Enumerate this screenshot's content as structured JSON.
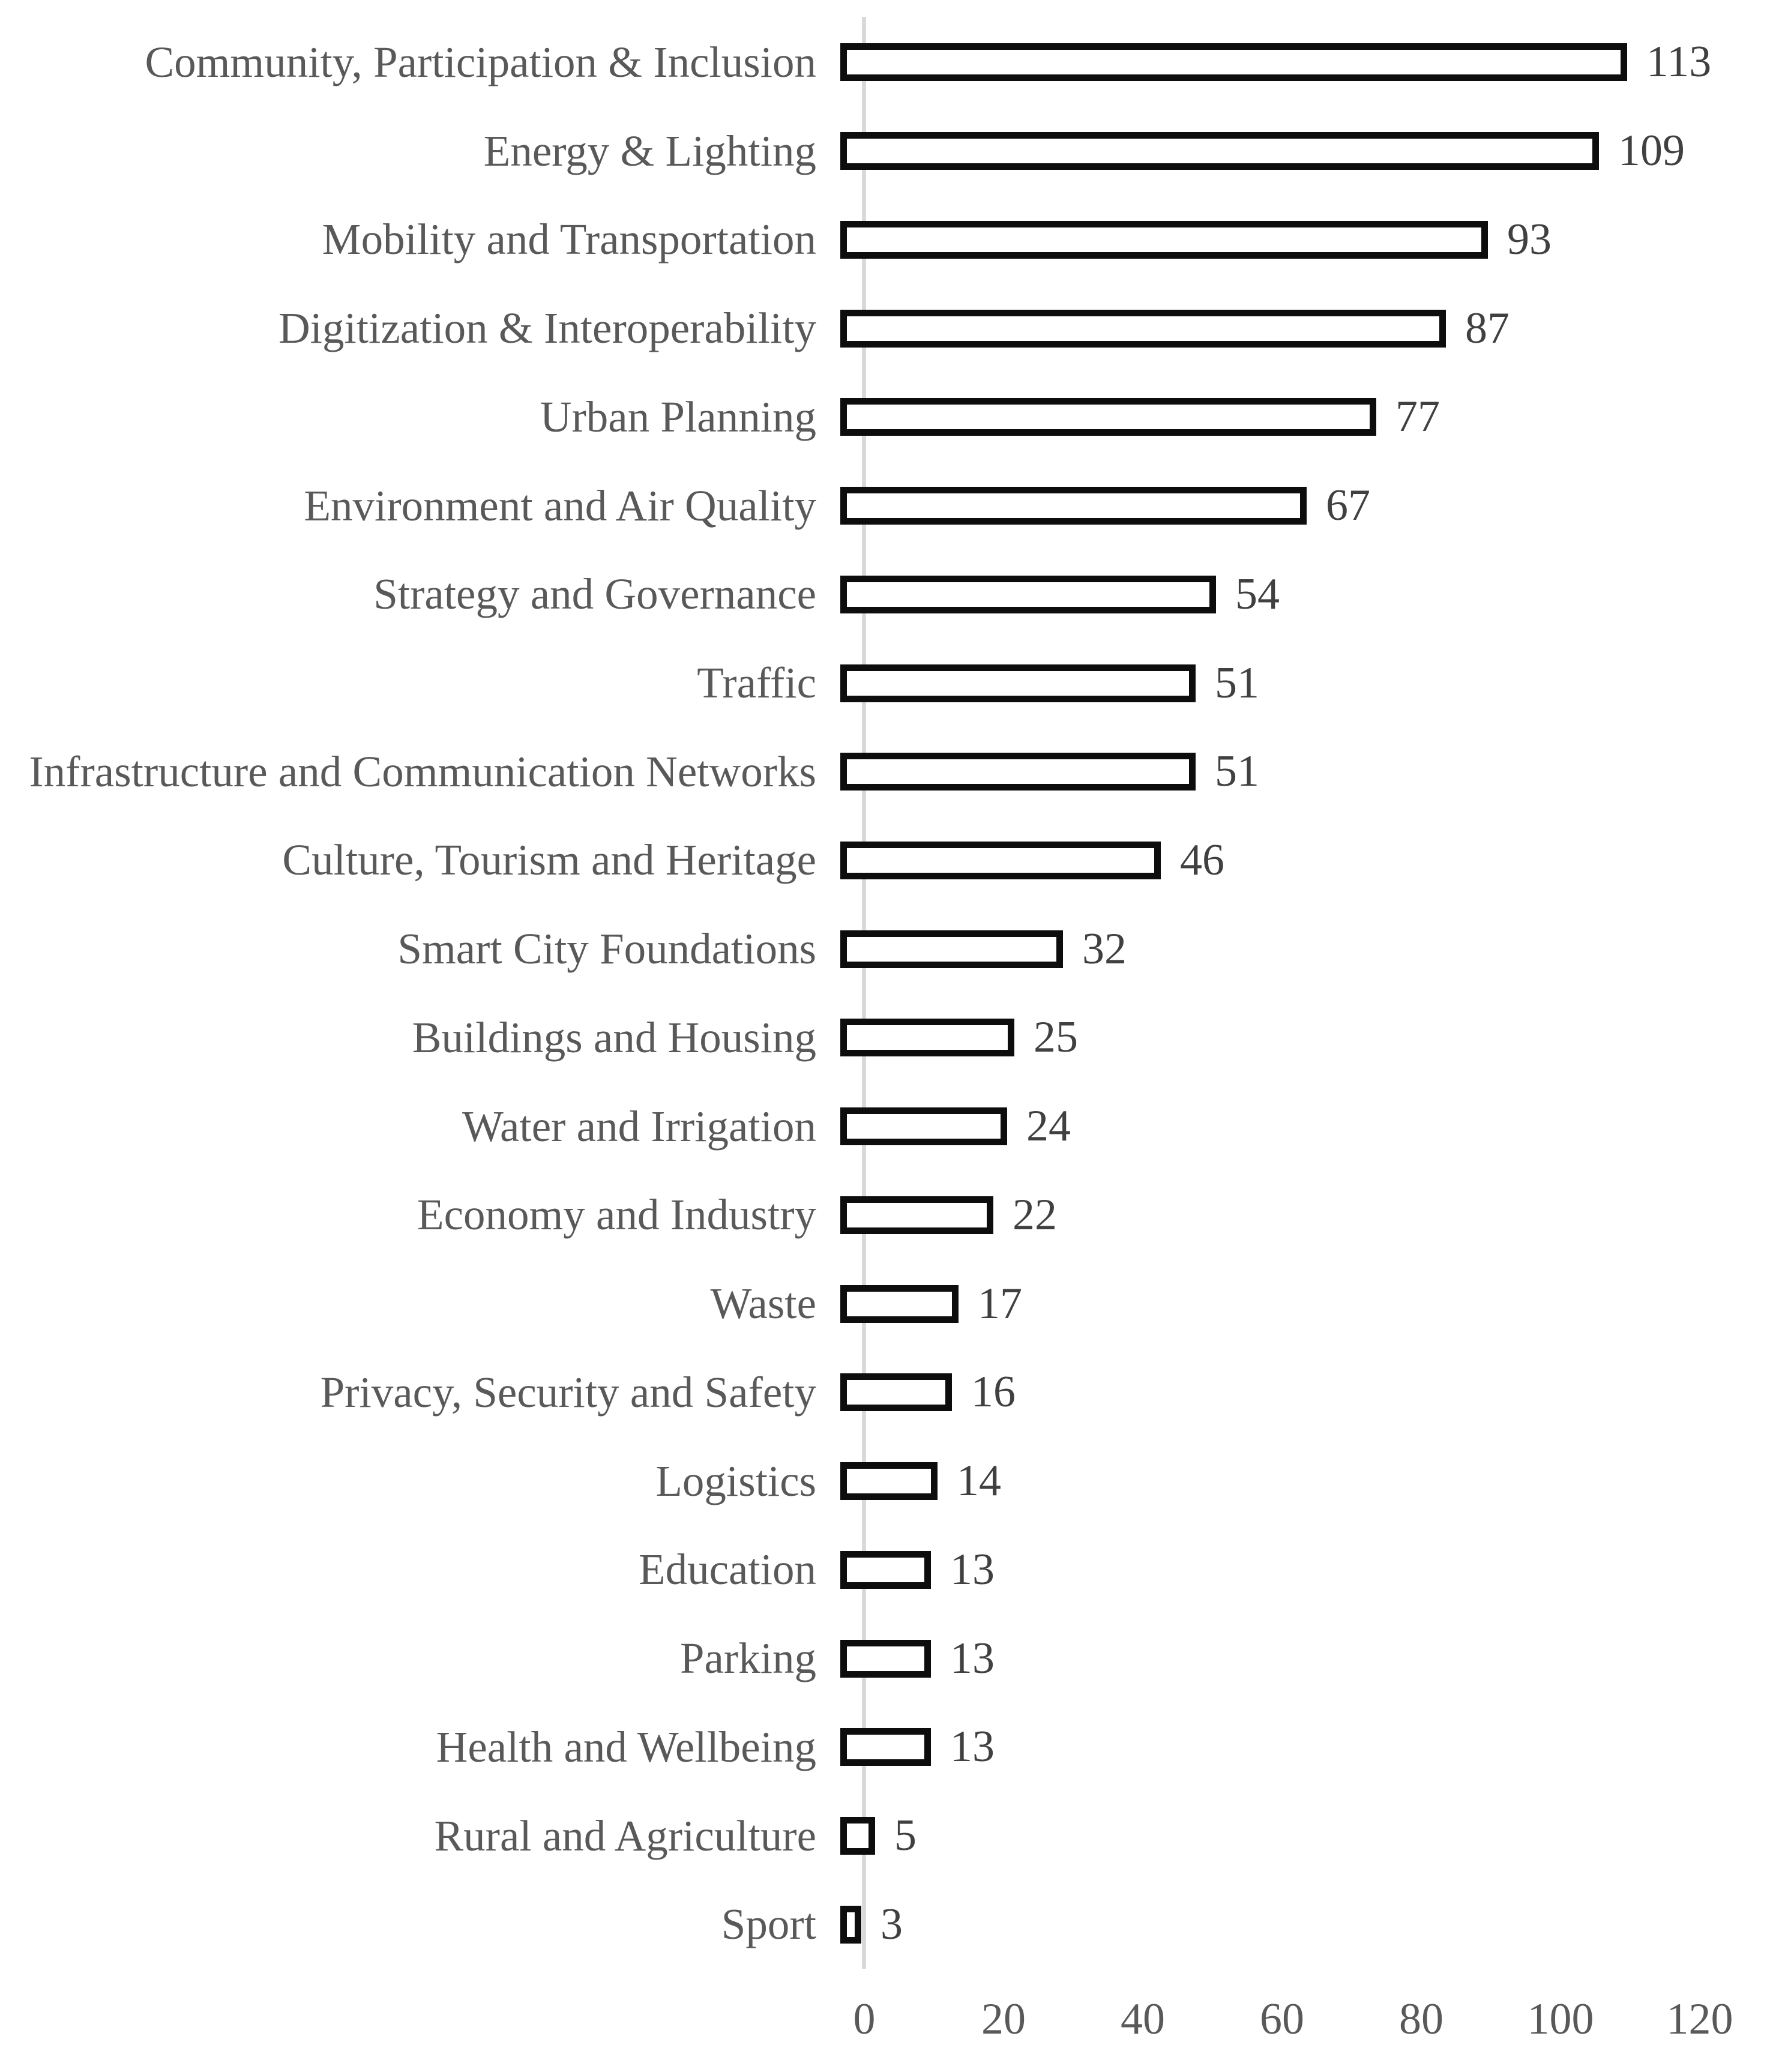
{
  "chart_data": {
    "type": "bar",
    "orientation": "horizontal",
    "title": "",
    "xlabel": "",
    "ylabel": "",
    "categories": [
      "Community, Participation & Inclusion",
      "Energy & Lighting",
      "Mobility and Transportation",
      "Digitization & Interoperability",
      "Urban Planning",
      "Environment and Air Quality",
      "Strategy and Governance",
      "Traffic",
      "Infrastructure and Communication Networks",
      "Culture, Tourism and Heritage",
      "Smart City Foundations",
      "Buildings and Housing",
      "Water and Irrigation",
      "Economy and Industry",
      "Waste",
      "Privacy, Security and Safety",
      "Logistics",
      "Education",
      "Parking",
      "Health and Wellbeing",
      "Rural and Agriculture",
      "Sport"
    ],
    "values": [
      113,
      109,
      93,
      87,
      77,
      67,
      54,
      51,
      51,
      46,
      32,
      25,
      24,
      22,
      17,
      16,
      14,
      13,
      13,
      13,
      5,
      3
    ],
    "xlim": [
      0,
      120
    ],
    "x_ticks": [
      0,
      20,
      40,
      60,
      80,
      100,
      120
    ],
    "grid": false,
    "legend": false,
    "data_labels": true,
    "colors": {
      "bar_fill": "#ffffff",
      "bar_border": "#0d0d0d",
      "category_label": "#595959",
      "value_label": "#404040",
      "tick_label": "#595959",
      "axis_line": "#d9d9d9",
      "background": "#ffffff"
    }
  }
}
